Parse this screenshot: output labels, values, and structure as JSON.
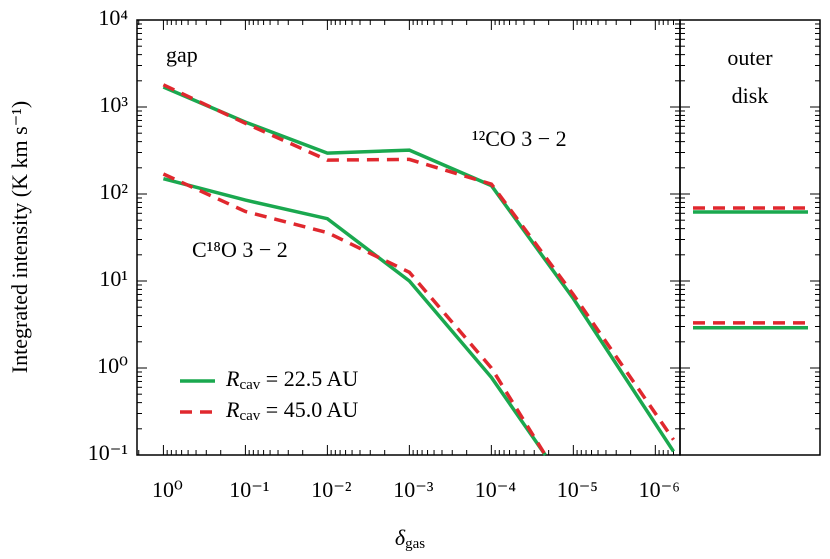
{
  "chart_data": [
    {
      "type": "line",
      "xscale": "log",
      "yscale": "log",
      "xlim": [
        2.1,
        5e-07
      ],
      "ylim": [
        0.1,
        10000
      ],
      "xticks": [
        {
          "value": 1,
          "label": "10⁰"
        },
        {
          "value": 0.1,
          "label": "10⁻¹"
        },
        {
          "value": 0.01,
          "label": "10⁻²"
        },
        {
          "value": 0.001,
          "label": "10⁻³"
        },
        {
          "value": 0.0001,
          "label": "10⁻⁴"
        },
        {
          "value": 1e-05,
          "label": "10⁻⁵"
        },
        {
          "value": 1e-06,
          "label": "10⁻⁶"
        }
      ],
      "yticks": [
        {
          "value": 0.1,
          "label": "10⁻¹"
        },
        {
          "value": 1,
          "label": "10⁰"
        },
        {
          "value": 10,
          "label": "10¹"
        },
        {
          "value": 100,
          "label": "10²"
        },
        {
          "value": 1000,
          "label": "10³"
        },
        {
          "value": 10000,
          "label": "10⁴"
        }
      ],
      "xlabel": "δgas",
      "ylabel": "Integrated intensity (K km s⁻¹)",
      "annotations": [
        "gap",
        "¹²CO 3 − 2",
        "C¹⁸O 3 − 2"
      ],
      "legend": "lower left",
      "series": [
        {
          "name": "Rcav = 22.5 AU",
          "color": "#1aa84f",
          "style": "solid",
          "x": [
            1,
            0.1,
            0.01,
            0.001,
            0.0001,
            1e-05,
            6e-07
          ],
          "values": [
            1700,
            670,
            295,
            320,
            125,
            6.3,
            0.11
          ]
        },
        {
          "name": "Rcav = 45.0 AU",
          "color": "#e0282e",
          "style": "dashed",
          "x": [
            1,
            0.1,
            0.01,
            0.001,
            0.0001,
            1e-05,
            6e-07
          ],
          "values": [
            1800,
            650,
            245,
            250,
            130,
            7,
            0.15
          ]
        },
        {
          "color": "#1aa84f",
          "style": "solid",
          "x": [
            1,
            0.1,
            0.01,
            0.001,
            0.0001,
            2.2e-05
          ],
          "values": [
            150,
            85,
            52,
            10,
            0.78,
            0.1
          ]
        },
        {
          "color": "#e0282e",
          "style": "dashed",
          "x": [
            1,
            0.1,
            0.01,
            0.001,
            0.0001,
            2.2e-05
          ],
          "values": [
            170,
            63,
            36,
            12.6,
            1,
            0.1
          ]
        }
      ]
    },
    {
      "type": "hline",
      "annotations": [
        "outer",
        "disk"
      ],
      "series": [
        {
          "color": "#1aa84f",
          "style": "solid",
          "values": [
            62,
            2.9
          ]
        },
        {
          "color": "#e0282e",
          "style": "dashed",
          "values": [
            69,
            3.3
          ]
        }
      ]
    }
  ]
}
